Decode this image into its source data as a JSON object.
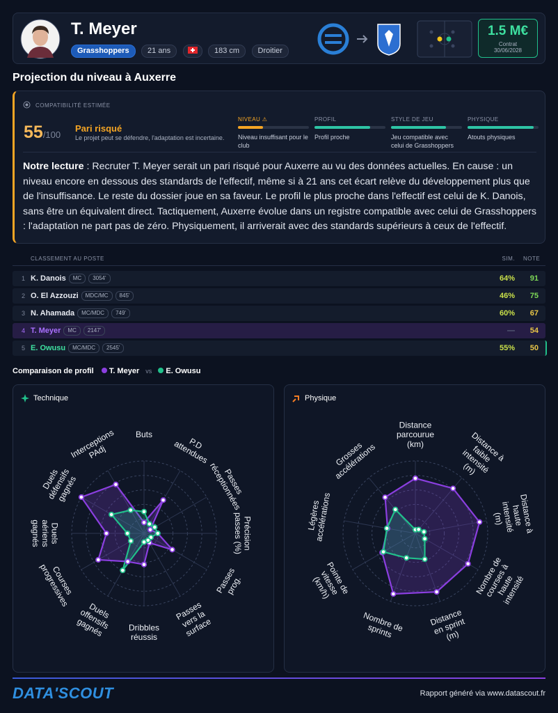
{
  "header": {
    "name": "T. Meyer",
    "club": "Grasshoppers",
    "age": "21 ans",
    "height": "183 cm",
    "foot": "Droitier",
    "value": "1.5 M€",
    "contract_label": "Contrat",
    "contract_date": "30/06/2028"
  },
  "section_title": "Projection du niveau à Auxerre",
  "compatibility": {
    "label": "COMPATIBILITÉ ESTIMÉE",
    "score": 55,
    "max": "/100",
    "verdict": "Pari risqué",
    "summary": "Le projet peut se défendre, l'adaptation est incertaine.",
    "criteria": [
      {
        "name": "NIVEAU ⚠",
        "fill": 35,
        "color": "#f5a524",
        "note": "Niveau insuffisant pour le club"
      },
      {
        "name": "PROFIL",
        "fill": 78,
        "color": "#2ec4a5",
        "note": "Profil proche"
      },
      {
        "name": "STYLE DE JEU",
        "fill": 77,
        "color": "#2ec4a5",
        "note": "Jeu compatible avec celui de Grasshoppers"
      },
      {
        "name": "PHYSIQUE",
        "fill": 93,
        "color": "#2ec4a5",
        "note": "Atouts physiques"
      }
    ]
  },
  "reading": {
    "lead": "Notre lecture",
    "text": " : Recruter T. Meyer serait un pari risqué pour Auxerre au vu des données actuelles. En cause : un niveau encore en dessous des standards de l'effectif, même si à 21 ans cet écart relève du développement plus que de l'insuffisance. Le reste du dossier joue en sa faveur. Le profil le plus proche dans l'effectif est celui de K. Danois, sans être un équivalent direct. Tactiquement, Auxerre évolue dans un registre compatible avec celui de Grasshoppers : l'adaptation ne part pas de zéro. Physiquement, il arriverait avec des standards supérieurs à ceux de l'effectif."
  },
  "ranking": {
    "title": "CLASSEMENT AU POSTE",
    "sim_header": "SIM.",
    "note_header": "NOTE",
    "rows": [
      {
        "rank": 1,
        "name": "K. Danois",
        "position": "MC",
        "minutes": "3054'",
        "sim": "64%",
        "note": 91
      },
      {
        "rank": 2,
        "name": "O. El Azzouzi",
        "position": "MDC/MC",
        "minutes": "845'",
        "sim": "46%",
        "note": 75
      },
      {
        "rank": 3,
        "name": "N. Ahamada",
        "position": "MC/MDC",
        "minutes": "749'",
        "sim": "60%",
        "note": 67
      },
      {
        "rank": 4,
        "name": "T. Meyer",
        "position": "MC",
        "minutes": "2147'",
        "sim": "—",
        "note": 54
      },
      {
        "rank": 5,
        "name": "E. Owusu",
        "position": "MC/MDC",
        "minutes": "2545'",
        "sim": "55%",
        "note": 50
      }
    ]
  },
  "comparison": {
    "title": "Comparaison de profil",
    "vs": "vs"
  },
  "chart_data": [
    {
      "type": "radar",
      "title": "Technique",
      "axes": [
        "Buts",
        "P.D attendues",
        "Passes réceptionnées",
        "Précision passes (%)",
        "Passes prog.",
        "Passes vers la surface",
        "Dribbles réussis",
        "Duels offensifs gagnés",
        "Courses progressives",
        "Duels aériens gagnés",
        "Duels défensifs gagnés",
        "Interceptions PAdj"
      ],
      "rlim": [
        0,
        100
      ],
      "rticks": [
        20,
        40,
        60,
        80,
        100
      ],
      "series": [
        {
          "name": "T. Meyer",
          "color": "#8b3fe0",
          "values": [
            15,
            53,
            10,
            19,
            45,
            15,
            43,
            45,
            73,
            52,
            100,
            78
          ]
        },
        {
          "name": "E. Owusu",
          "color": "#21c08b",
          "values": [
            30,
            15,
            17,
            19,
            11,
            11,
            12,
            59,
            21,
            23,
            52,
            37
          ]
        }
      ]
    },
    {
      "type": "radar",
      "title": "Physique",
      "axes": [
        "Distance parcourue (km)",
        "Distance à faible intensité (m)",
        "Distance à haute intensité (m)",
        "Nombre de courses à haute intensité",
        "Distance en sprint (m)",
        "Nombre de sprints",
        "Pointe de vitesse (km/h)",
        "Légères accélérations",
        "Grosses accélérations"
      ],
      "rlim": [
        0,
        100
      ],
      "rticks": [
        20,
        40,
        60,
        80,
        100
      ],
      "series": [
        {
          "name": "T. Meyer",
          "color": "#8b3fe0",
          "values": [
            76,
            81,
            90,
            84,
            86,
            89,
            53,
            39,
            65
          ]
        },
        {
          "name": "E. Owusu",
          "color": "#21c08b",
          "values": [
            5,
            7,
            12,
            15,
            38,
            36,
            51,
            40,
            43
          ]
        }
      ]
    }
  ],
  "footer": {
    "logo": "DATA'SCOUT",
    "credit": "Rapport généré via www.datascout.fr"
  }
}
